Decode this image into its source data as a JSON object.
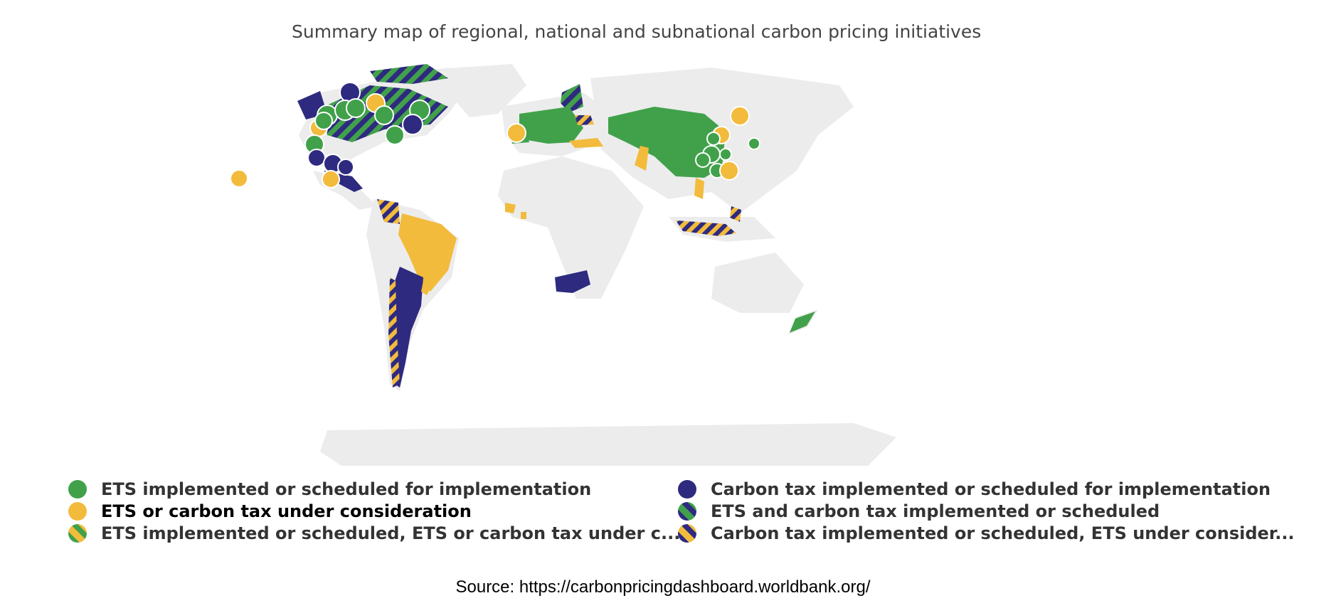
{
  "title": "Summary map of regional, national and subnational carbon pricing initiatives",
  "source": "Source: https://carbonpricingdashboard.worldbank.org/",
  "colors": {
    "ets": "#41a14a",
    "tax": "#2e2a80",
    "consideration": "#f2bb3c",
    "land": "#ececec",
    "ocean": "#ffffff"
  },
  "legend": {
    "left": [
      {
        "label": "ETS implemented or scheduled for implementation",
        "swatch": "ets"
      },
      {
        "label": "ETS or carbon tax under consideration",
        "swatch": "consideration"
      },
      {
        "label": "ETS implemented or scheduled, ETS or carbon tax under c...",
        "swatch": "ets-consideration"
      }
    ],
    "right": [
      {
        "label": "Carbon tax implemented or scheduled for implementation",
        "swatch": "tax"
      },
      {
        "label": "ETS and carbon tax implemented or scheduled",
        "swatch": "ets-tax"
      },
      {
        "label": "Carbon tax implemented or scheduled, ETS under consider...",
        "swatch": "tax-consideration"
      }
    ]
  }
}
